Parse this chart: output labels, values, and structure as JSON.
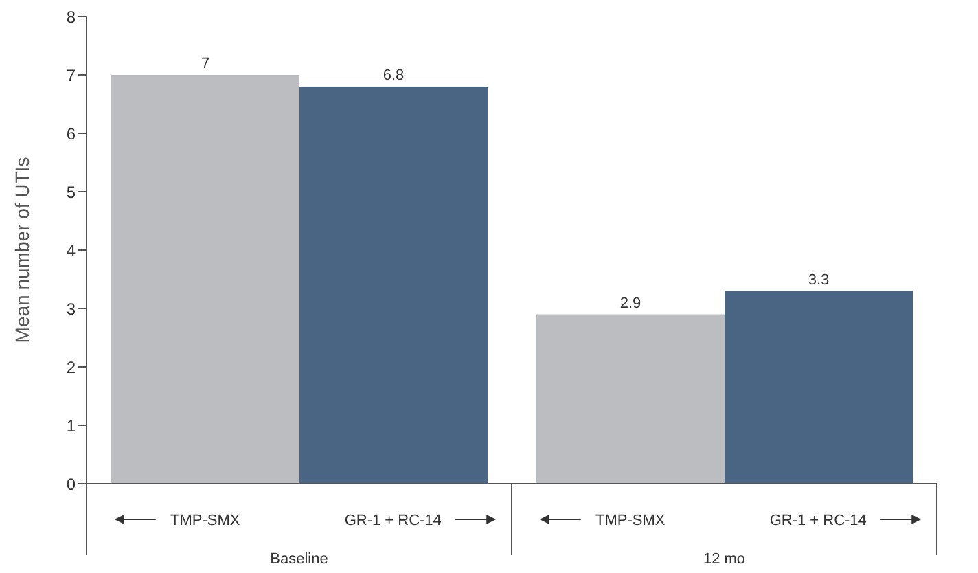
{
  "chart_data": {
    "type": "bar",
    "ylabel": "Mean number of UTIs",
    "categories": [
      "Baseline",
      "12 mo"
    ],
    "series": [
      {
        "name": "TMP-SMX",
        "color": "#bcbdc1",
        "values": [
          7,
          2.9
        ]
      },
      {
        "name": "GR-1 + RC-14",
        "color": "#4a6583",
        "values": [
          6.8,
          3.3
        ]
      }
    ],
    "ylim": [
      0,
      8
    ],
    "yticks": [
      0,
      1,
      2,
      3,
      4,
      5,
      6,
      7,
      8
    ],
    "data_labels": true
  }
}
